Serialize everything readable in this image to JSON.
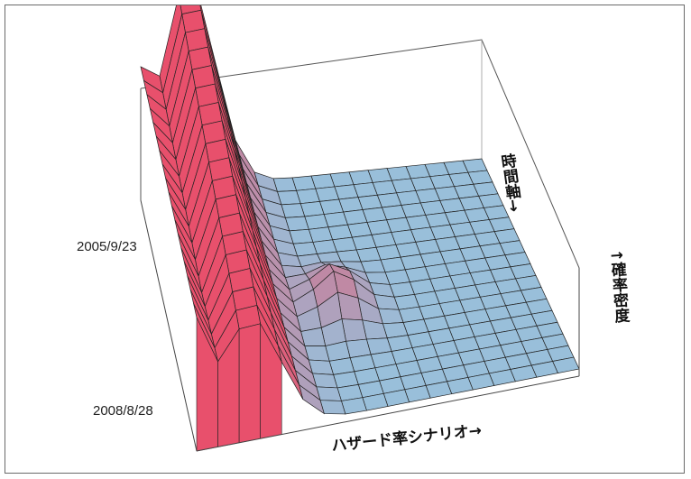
{
  "chart_data": {
    "type": "surface",
    "title": "",
    "x_label": "ハザード率シナリオ→",
    "y_label": "時間軸→",
    "z_label": "↑確率密度",
    "time_labels": [
      "2005/9/23",
      "2008/8/28"
    ],
    "grid": true,
    "colors": {
      "high_density": "#e8506c",
      "low_density": "#8fcde8",
      "stripe": "#7a5fb0"
    }
  }
}
